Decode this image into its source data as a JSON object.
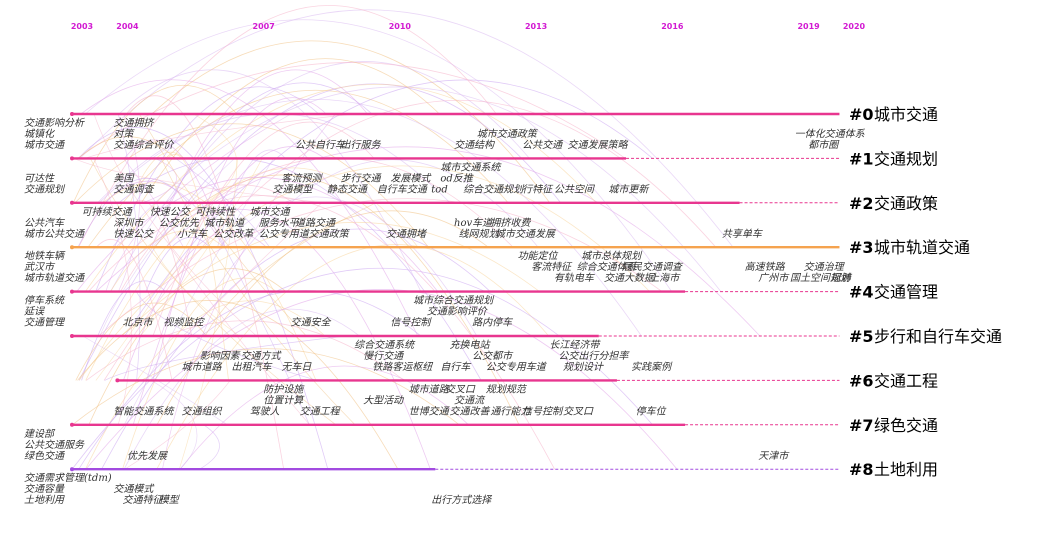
{
  "years": [
    "2003",
    "2004",
    "2007",
    "2010",
    "2013",
    "2016",
    "2019",
    "2020"
  ],
  "clusters": [
    {
      "id": "#0",
      "name": "城市交通",
      "start": 2003,
      "end": 2019.9,
      "solid_end": 2019.9,
      "color": "#e8368f"
    },
    {
      "id": "#1",
      "name": "交通规划",
      "start": 2003,
      "end": 2019.9,
      "solid_end": 2015.2,
      "color": "#e8368f"
    },
    {
      "id": "#2",
      "name": "交通政策",
      "start": 2003,
      "end": 2019.9,
      "solid_end": 2017.7,
      "color": "#e8368f"
    },
    {
      "id": "#3",
      "name": "城市轨道交通",
      "start": 2003,
      "end": 2019.9,
      "solid_end": 2019.9,
      "color": "#f5a34f"
    },
    {
      "id": "#4",
      "name": "交通管理",
      "start": 2003,
      "end": 2019.9,
      "solid_end": 2016.5,
      "color": "#e8368f"
    },
    {
      "id": "#5",
      "name": "步行和自行车交通",
      "start": 2003,
      "end": 2019.9,
      "solid_end": 2014.6,
      "color": "#e8368f"
    },
    {
      "id": "#6",
      "name": "交通工程",
      "start": 2004,
      "end": 2019.9,
      "solid_end": 2015.0,
      "color": "#e8368f"
    },
    {
      "id": "#7",
      "name": "绿色交通",
      "start": 2003,
      "end": 2019.9,
      "solid_end": 2016.5,
      "color": "#e8368f"
    },
    {
      "id": "#8",
      "name": "土地利用",
      "start": 2003,
      "end": 2019.9,
      "solid_end": 2011.0,
      "color": "#a24be0"
    }
  ],
  "terms": [
    {
      "t": "交通影响分析",
      "x": 2003,
      "row": 0,
      "dy": 0
    },
    {
      "t": "交通拥挤",
      "x": 2004,
      "row": 0,
      "dy": 0
    },
    {
      "t": "城镇化",
      "x": 2003,
      "row": 0,
      "dy": 1
    },
    {
      "t": "对策",
      "x": 2004,
      "row": 0,
      "dy": 1
    },
    {
      "t": "城市交通",
      "x": 2003,
      "row": 0,
      "dy": 2
    },
    {
      "t": "交通综合评价",
      "x": 2004,
      "row": 0,
      "dy": 2
    },
    {
      "t": "公共自行车",
      "x": 2008,
      "row": 0,
      "dy": 2
    },
    {
      "t": "出行服务",
      "x": 2009,
      "row": 0,
      "dy": 2
    },
    {
      "t": "城市交通政策",
      "x": 2012,
      "row": 0,
      "dy": 1
    },
    {
      "t": "交通结构",
      "x": 2011.5,
      "row": 0,
      "dy": 2
    },
    {
      "t": "公共交通",
      "x": 2013,
      "row": 0,
      "dy": 2
    },
    {
      "t": "交通发展策略",
      "x": 2014,
      "row": 0,
      "dy": 2
    },
    {
      "t": "一体化交通体系",
      "x": 2019,
      "row": 0,
      "dy": 1
    },
    {
      "t": "都市圈",
      "x": 2019.3,
      "row": 0,
      "dy": 2
    },
    {
      "t": "城市交通系统",
      "x": 2011.2,
      "row": 1,
      "dy": 0
    },
    {
      "t": "可达性",
      "x": 2003,
      "row": 1,
      "dy": 1
    },
    {
      "t": "美国",
      "x": 2004,
      "row": 1,
      "dy": 1
    },
    {
      "t": "客流预测",
      "x": 2007.7,
      "row": 1,
      "dy": 1
    },
    {
      "t": "步行交通",
      "x": 2009,
      "row": 1,
      "dy": 1
    },
    {
      "t": "发展模式",
      "x": 2010.1,
      "row": 1,
      "dy": 1
    },
    {
      "t": "od反推",
      "x": 2011.2,
      "row": 1,
      "dy": 1
    },
    {
      "t": "交通规划",
      "x": 2003,
      "row": 1,
      "dy": 2
    },
    {
      "t": "交通调查",
      "x": 2004,
      "row": 1,
      "dy": 2
    },
    {
      "t": "交通模型",
      "x": 2007.5,
      "row": 1,
      "dy": 2
    },
    {
      "t": "静态交通",
      "x": 2008.7,
      "row": 1,
      "dy": 2
    },
    {
      "t": "自行车交通",
      "x": 2009.8,
      "row": 1,
      "dy": 2
    },
    {
      "t": "tod",
      "x": 2011,
      "row": 1,
      "dy": 2
    },
    {
      "t": "综合交通规划",
      "x": 2011.7,
      "row": 1,
      "dy": 2
    },
    {
      "t": "行特征",
      "x": 2013,
      "row": 1,
      "dy": 2
    },
    {
      "t": "公共空间",
      "x": 2013.7,
      "row": 1,
      "dy": 2
    },
    {
      "t": "城市更新",
      "x": 2014.9,
      "row": 1,
      "dy": 2
    },
    {
      "t": "可持续交通",
      "x": 2003.3,
      "row": 2,
      "dy": 0
    },
    {
      "t": "快速公交",
      "x": 2004.8,
      "row": 2,
      "dy": 0
    },
    {
      "t": "可持续性",
      "x": 2005.8,
      "row": 2,
      "dy": 0
    },
    {
      "t": "城市交通",
      "x": 2007,
      "row": 2,
      "dy": 0
    },
    {
      "t": "hov车道",
      "x": 2011.5,
      "row": 2,
      "dy": 1
    },
    {
      "t": "拥挤收费",
      "x": 2012.3,
      "row": 2,
      "dy": 1
    },
    {
      "t": "公共汽车",
      "x": 2003,
      "row": 2,
      "dy": 1
    },
    {
      "t": "深圳市",
      "x": 2004,
      "row": 2,
      "dy": 1
    },
    {
      "t": "公交优先",
      "x": 2005,
      "row": 2,
      "dy": 1
    },
    {
      "t": "城市轨道",
      "x": 2006,
      "row": 2,
      "dy": 1
    },
    {
      "t": "服务水平",
      "x": 2007.2,
      "row": 2,
      "dy": 1
    },
    {
      "t": "道路交通",
      "x": 2008,
      "row": 2,
      "dy": 1
    },
    {
      "t": "城市公共交通",
      "x": 2003,
      "row": 2,
      "dy": 2
    },
    {
      "t": "快速公交",
      "x": 2004,
      "row": 2,
      "dy": 2
    },
    {
      "t": "小汽车",
      "x": 2005.4,
      "row": 2,
      "dy": 2
    },
    {
      "t": "公交改革",
      "x": 2006.2,
      "row": 2,
      "dy": 2
    },
    {
      "t": "公交专用道",
      "x": 2007.2,
      "row": 2,
      "dy": 2
    },
    {
      "t": "交通政策",
      "x": 2008.3,
      "row": 2,
      "dy": 2
    },
    {
      "t": "交通拥堵",
      "x": 2010,
      "row": 2,
      "dy": 2
    },
    {
      "t": "线网规划",
      "x": 2011.6,
      "row": 2,
      "dy": 2
    },
    {
      "t": "城市交通发展",
      "x": 2012.4,
      "row": 2,
      "dy": 2
    },
    {
      "t": "共享单车",
      "x": 2017.4,
      "row": 2,
      "dy": 2
    },
    {
      "t": "地铁车辆",
      "x": 2003,
      "row": 3,
      "dy": 0
    },
    {
      "t": "武汉市",
      "x": 2003,
      "row": 3,
      "dy": 1
    },
    {
      "t": "城市轨道交通",
      "x": 2003,
      "row": 3,
      "dy": 2
    },
    {
      "t": "功能定位",
      "x": 2012.9,
      "row": 3,
      "dy": 0
    },
    {
      "t": "城市总体规划",
      "x": 2014.3,
      "row": 3,
      "dy": 0
    },
    {
      "t": "客流特征",
      "x": 2013.2,
      "row": 3,
      "dy": 1
    },
    {
      "t": "综合交通体系",
      "x": 2014.2,
      "row": 3,
      "dy": 1
    },
    {
      "t": "居民交通调查",
      "x": 2015.2,
      "row": 3,
      "dy": 1
    },
    {
      "t": "高速铁路",
      "x": 2017.9,
      "row": 3,
      "dy": 1
    },
    {
      "t": "交通治理",
      "x": 2019.2,
      "row": 3,
      "dy": 1
    },
    {
      "t": "有轨电车",
      "x": 2013.7,
      "row": 3,
      "dy": 2
    },
    {
      "t": "交通大数据",
      "x": 2014.8,
      "row": 3,
      "dy": 2
    },
    {
      "t": "上海市",
      "x": 2015.8,
      "row": 3,
      "dy": 2
    },
    {
      "t": "广州市",
      "x": 2018.2,
      "row": 3,
      "dy": 2
    },
    {
      "t": "国土空间规划",
      "x": 2018.9,
      "row": 3,
      "dy": 2
    },
    {
      "t": "冠肺",
      "x": 2019.8,
      "row": 3,
      "dy": 2
    },
    {
      "t": "停车系统",
      "x": 2003,
      "row": 4,
      "dy": 0
    },
    {
      "t": "城市综合交通规划",
      "x": 2010.6,
      "row": 4,
      "dy": 0
    },
    {
      "t": "延误",
      "x": 2003,
      "row": 4,
      "dy": 1
    },
    {
      "t": "交通影响评价",
      "x": 2010.9,
      "row": 4,
      "dy": 1
    },
    {
      "t": "交通管理",
      "x": 2003,
      "row": 4,
      "dy": 2
    },
    {
      "t": "北京市",
      "x": 2004.2,
      "row": 4,
      "dy": 2
    },
    {
      "t": "视频监控",
      "x": 2005.1,
      "row": 4,
      "dy": 2
    },
    {
      "t": "交通安全",
      "x": 2007.9,
      "row": 4,
      "dy": 2
    },
    {
      "t": "信号控制",
      "x": 2010.1,
      "row": 4,
      "dy": 2
    },
    {
      "t": "路内停车",
      "x": 2011.9,
      "row": 4,
      "dy": 2
    },
    {
      "t": "综合交通系统",
      "x": 2009.3,
      "row": 5,
      "dy": 0
    },
    {
      "t": "充换电站",
      "x": 2011.4,
      "row": 5,
      "dy": 0
    },
    {
      "t": "长江经济带",
      "x": 2013.6,
      "row": 5,
      "dy": 0
    },
    {
      "t": "影响因素",
      "x": 2005.9,
      "row": 5,
      "dy": 1
    },
    {
      "t": "交通方式",
      "x": 2006.8,
      "row": 5,
      "dy": 1
    },
    {
      "t": "慢行交通",
      "x": 2009.5,
      "row": 5,
      "dy": 1
    },
    {
      "t": "公交都市",
      "x": 2011.9,
      "row": 5,
      "dy": 1
    },
    {
      "t": "公交出行分担率",
      "x": 2013.8,
      "row": 5,
      "dy": 1
    },
    {
      "t": "城市道路",
      "x": 2005.5,
      "row": 5,
      "dy": 2
    },
    {
      "t": "出租汽车",
      "x": 2006.6,
      "row": 5,
      "dy": 2
    },
    {
      "t": "无车日",
      "x": 2007.7,
      "row": 5,
      "dy": 2
    },
    {
      "t": "铁路客运枢纽",
      "x": 2009.7,
      "row": 5,
      "dy": 2
    },
    {
      "t": "自行车",
      "x": 2011.2,
      "row": 5,
      "dy": 2
    },
    {
      "t": "公交专用车道",
      "x": 2012.2,
      "row": 5,
      "dy": 2
    },
    {
      "t": "规划设计",
      "x": 2013.9,
      "row": 5,
      "dy": 2
    },
    {
      "t": "实践案例",
      "x": 2015.4,
      "row": 5,
      "dy": 2
    },
    {
      "t": "防护设施",
      "x": 2007.3,
      "row": 6,
      "dy": 0
    },
    {
      "t": "城市道路",
      "x": 2010.5,
      "row": 6,
      "dy": 0
    },
    {
      "t": "交叉口",
      "x": 2011.3,
      "row": 6,
      "dy": 0
    },
    {
      "t": "规划规范",
      "x": 2012.2,
      "row": 6,
      "dy": 0
    },
    {
      "t": "位置计算",
      "x": 2007.3,
      "row": 6,
      "dy": 1
    },
    {
      "t": "大型活动",
      "x": 2009.5,
      "row": 6,
      "dy": 1
    },
    {
      "t": "交通流",
      "x": 2011.5,
      "row": 6,
      "dy": 1
    },
    {
      "t": "智能交通系统",
      "x": 2004,
      "row": 6,
      "dy": 2
    },
    {
      "t": "交通组织",
      "x": 2005.5,
      "row": 6,
      "dy": 2
    },
    {
      "t": "驾驶人",
      "x": 2007,
      "row": 6,
      "dy": 2
    },
    {
      "t": "交通工程",
      "x": 2008.1,
      "row": 6,
      "dy": 2
    },
    {
      "t": "世博交通",
      "x": 2010.5,
      "row": 6,
      "dy": 2
    },
    {
      "t": "交通改善",
      "x": 2011.4,
      "row": 6,
      "dy": 2
    },
    {
      "t": "通行能力",
      "x": 2012.3,
      "row": 6,
      "dy": 2
    },
    {
      "t": "信号控制",
      "x": 2013,
      "row": 6,
      "dy": 2
    },
    {
      "t": "交叉口",
      "x": 2013.9,
      "row": 6,
      "dy": 2
    },
    {
      "t": "停车位",
      "x": 2015.5,
      "row": 6,
      "dy": 2
    },
    {
      "t": "建设部",
      "x": 2003,
      "row": 7,
      "dy": 0
    },
    {
      "t": "公共交通服务",
      "x": 2003,
      "row": 7,
      "dy": 1
    },
    {
      "t": "绿色交通",
      "x": 2003,
      "row": 7,
      "dy": 2
    },
    {
      "t": "优先发展",
      "x": 2004.3,
      "row": 7,
      "dy": 2
    },
    {
      "t": "天津市",
      "x": 2018.2,
      "row": 7,
      "dy": 2
    },
    {
      "t": "交通需求管理(tdm)",
      "x": 2003,
      "row": 8,
      "dy": 0
    },
    {
      "t": "交通容量",
      "x": 2003,
      "row": 8,
      "dy": 1
    },
    {
      "t": "交通模式",
      "x": 2004,
      "row": 8,
      "dy": 1
    },
    {
      "t": "土地利用",
      "x": 2003,
      "row": 8,
      "dy": 2
    },
    {
      "t": "交通特征",
      "x": 2004.2,
      "row": 8,
      "dy": 2
    },
    {
      "t": "模型",
      "x": 2005,
      "row": 8,
      "dy": 2
    },
    {
      "t": "出行方式选择",
      "x": 2011,
      "row": 8,
      "dy": 2
    }
  ]
}
